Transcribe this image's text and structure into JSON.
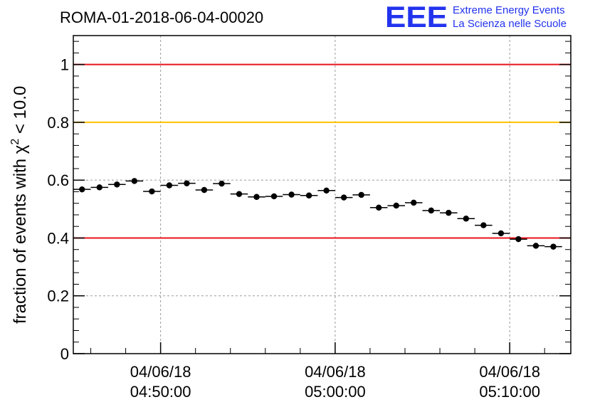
{
  "header": {
    "run_title": "ROMA-01-2018-06-04-00020",
    "logo_letters": "EEE",
    "logo_line1": "Extreme Energy Events",
    "logo_line2": "La Scienza nelle Scuole"
  },
  "colors": {
    "red_line": "#e8141b",
    "yellow_line": "#ffc000",
    "logo_blue": "#2233ee",
    "data": "#000000",
    "grid": "#9a9a9a"
  },
  "chart_data": {
    "type": "scatter",
    "title": "ROMA-01-2018-06-04-00020",
    "xlabel": "",
    "ylabel_prefix": "fraction of events with ",
    "ylabel_symbol": "χ",
    "ylabel_superscript": "2",
    "ylabel_suffix": " < 10.0",
    "x_unit": "minutes since 04:45:00 on 04/06/18",
    "xlim": [
      0,
      28.5
    ],
    "ylim": [
      0,
      1.1
    ],
    "grid": true,
    "y_ticks": [
      {
        "value": 0,
        "label": "0"
      },
      {
        "value": 0.2,
        "label": "0.2"
      },
      {
        "value": 0.4,
        "label": "0.4"
      },
      {
        "value": 0.6,
        "label": "0.6"
      },
      {
        "value": 0.8,
        "label": "0.8"
      },
      {
        "value": 1,
        "label": "1"
      }
    ],
    "x_ticks": [
      {
        "value": 5,
        "date": "04/06/18",
        "time": "04:50:00"
      },
      {
        "value": 15,
        "date": "04/06/18",
        "time": "05:00:00"
      },
      {
        "value": 25,
        "date": "04/06/18",
        "time": "05:10:00"
      }
    ],
    "reference_lines": [
      {
        "y": 1.0,
        "color": "#e8141b"
      },
      {
        "y": 0.8,
        "color": "#ffc000"
      },
      {
        "y": 0.4,
        "color": "#e8141b"
      }
    ],
    "bin_width": 1.0,
    "x": [
      0.5,
      1.5,
      2.5,
      3.5,
      4.5,
      5.5,
      6.5,
      7.5,
      8.5,
      9.5,
      10.5,
      11.5,
      12.5,
      13.5,
      14.5,
      15.5,
      16.5,
      17.5,
      18.5,
      19.5,
      20.5,
      21.5,
      22.5,
      23.5,
      24.5,
      25.5,
      26.5,
      27.5
    ],
    "y": [
      0.568,
      0.575,
      0.585,
      0.597,
      0.561,
      0.582,
      0.589,
      0.566,
      0.588,
      0.552,
      0.542,
      0.544,
      0.55,
      0.547,
      0.564,
      0.54,
      0.549,
      0.505,
      0.512,
      0.522,
      0.495,
      0.487,
      0.467,
      0.444,
      0.416,
      0.396,
      0.373,
      0.37
    ],
    "y_err": [
      0.01,
      0.01,
      0.01,
      0.01,
      0.01,
      0.01,
      0.01,
      0.01,
      0.01,
      0.01,
      0.01,
      0.01,
      0.01,
      0.01,
      0.01,
      0.01,
      0.01,
      0.01,
      0.01,
      0.01,
      0.01,
      0.01,
      0.01,
      0.01,
      0.01,
      0.01,
      0.01,
      0.01
    ]
  }
}
